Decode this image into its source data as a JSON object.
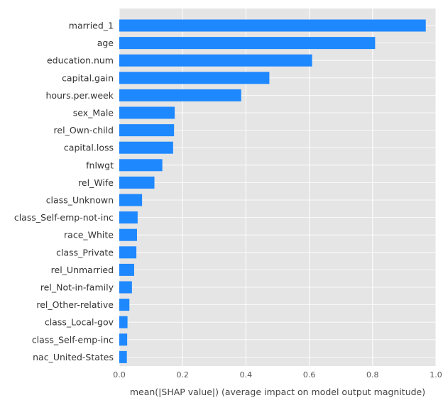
{
  "chart_data": {
    "type": "bar",
    "orientation": "horizontal",
    "title": "",
    "xlabel": "mean(|SHAP value|) (average impact on model output magnitude)",
    "ylabel": "",
    "xlim": [
      0,
      1.0
    ],
    "xticks": [
      0,
      0.2,
      0.4,
      0.6,
      0.8,
      1.0
    ],
    "xtick_labels": [
      "0.0",
      "0.2",
      "0.4",
      "0.6",
      "0.8",
      "1.0"
    ],
    "grid": true,
    "legend": "none",
    "bar_color": "#1e88ff",
    "background_color": "#e5e5e5",
    "grid_color": "#ffffff",
    "categories": [
      "married_1",
      "age",
      "education.num",
      "capital.gain",
      "hours.per.week",
      "sex_Male",
      "rel_Own-child",
      "capital.loss",
      "fnlwgt",
      "rel_Wife",
      "class_Unknown",
      "class_Self-emp-not-inc",
      "race_White",
      "class_Private",
      "rel_Unmarried",
      "rel_Not-in-family",
      "rel_Other-relative",
      "class_Local-gov",
      "class_Self-emp-inc",
      "nac_United-States"
    ],
    "values": [
      0.968,
      0.808,
      0.609,
      0.474,
      0.385,
      0.175,
      0.173,
      0.17,
      0.136,
      0.111,
      0.072,
      0.058,
      0.056,
      0.054,
      0.047,
      0.04,
      0.032,
      0.026,
      0.025,
      0.024
    ]
  }
}
